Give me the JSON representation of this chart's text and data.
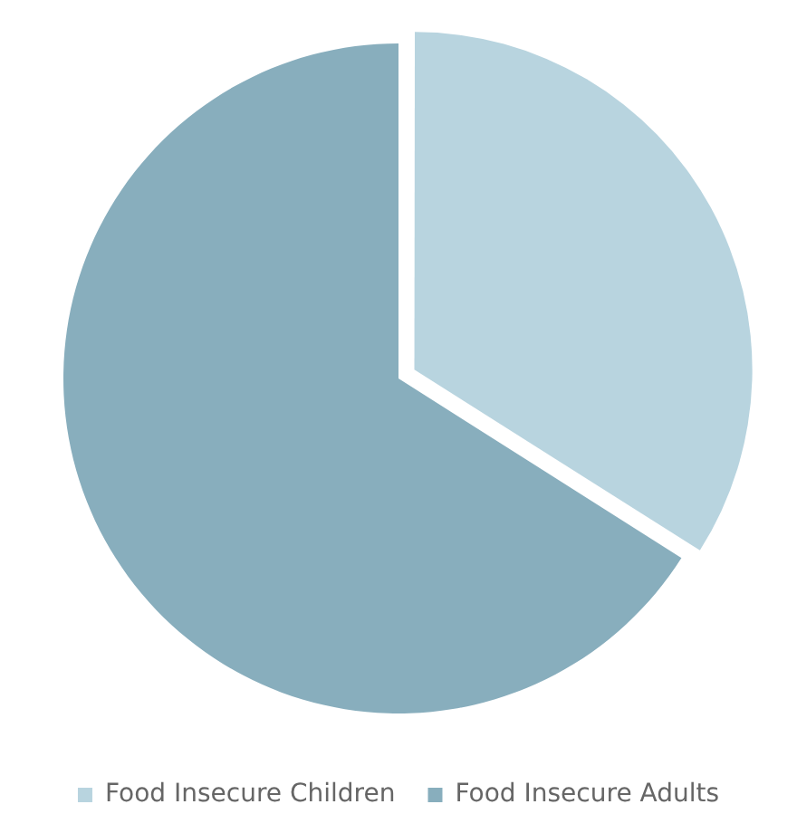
{
  "chart_data": {
    "type": "pie",
    "categories": [
      "Food Insecure Children",
      "Food Insecure Adults"
    ],
    "values": [
      34,
      66
    ],
    "colors": [
      "#b8d4df",
      "#88aebd"
    ],
    "legend": "bottom"
  }
}
